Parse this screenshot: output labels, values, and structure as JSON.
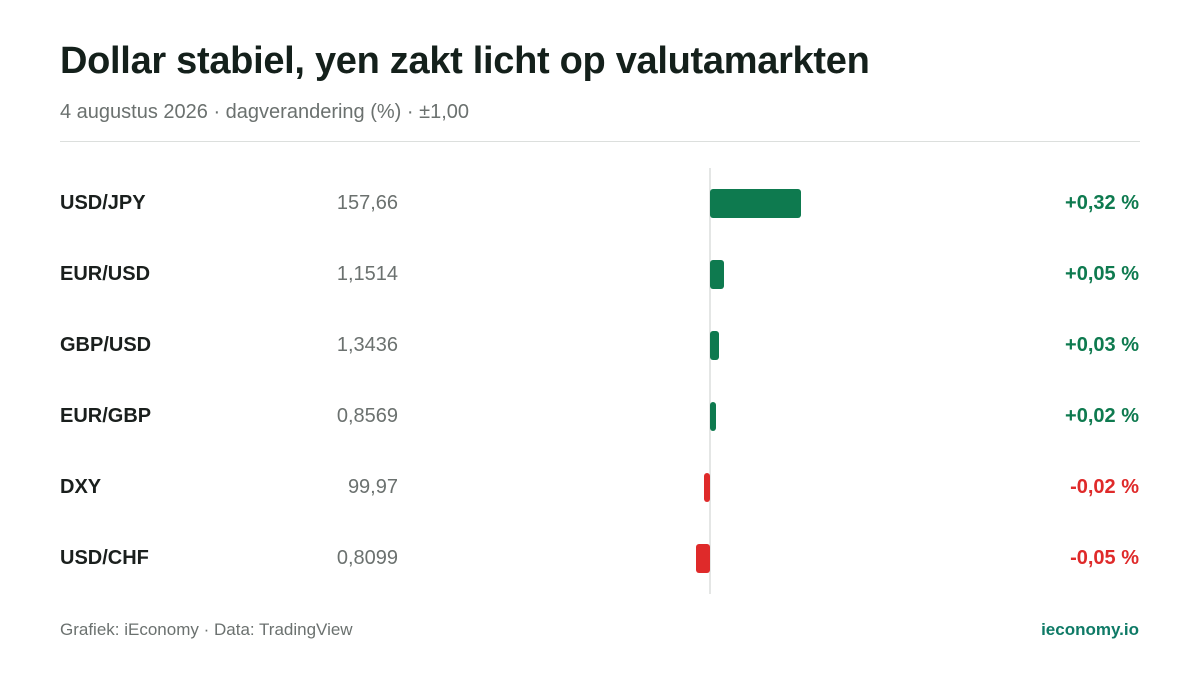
{
  "header": {
    "title": "Dollar stabiel, yen zakt licht op valutamarkten",
    "subtitle": "4 augustus 2026 · dagverandering (%) · ±1,00"
  },
  "footer": {
    "source": "Grafiek: iEconomy · Data: TradingView",
    "brand": "ieconomy.io"
  },
  "colors": {
    "positive": "#0e7a4f",
    "negative": "#df2a2a",
    "brand": "#0e7a66"
  },
  "chart_data": {
    "type": "bar",
    "orientation": "horizontal",
    "title": "Dollar stabiel, yen zakt licht op valutamarkten",
    "xlim": [
      -1.0,
      1.0
    ],
    "grid": false,
    "categories": [
      "USD/JPY",
      "EUR/USD",
      "GBP/USD",
      "EUR/GBP",
      "DXY",
      "USD/CHF"
    ],
    "values": [
      0.32,
      0.05,
      0.03,
      0.02,
      -0.02,
      -0.05
    ],
    "rows": [
      {
        "pair": "USD/JPY",
        "price": "157,66",
        "change": 0.32,
        "change_label": "+0,32 %"
      },
      {
        "pair": "EUR/USD",
        "price": "1,1514",
        "change": 0.05,
        "change_label": "+0,05 %"
      },
      {
        "pair": "GBP/USD",
        "price": "1,3436",
        "change": 0.03,
        "change_label": "+0,03 %"
      },
      {
        "pair": "EUR/GBP",
        "price": "0,8569",
        "change": 0.02,
        "change_label": "+0,02 %"
      },
      {
        "pair": "DXY",
        "price": "99,97",
        "change": -0.02,
        "change_label": "-0,02 %"
      },
      {
        "pair": "USD/CHF",
        "price": "0,8099",
        "change": -0.05,
        "change_label": "-0,05 %"
      }
    ]
  }
}
